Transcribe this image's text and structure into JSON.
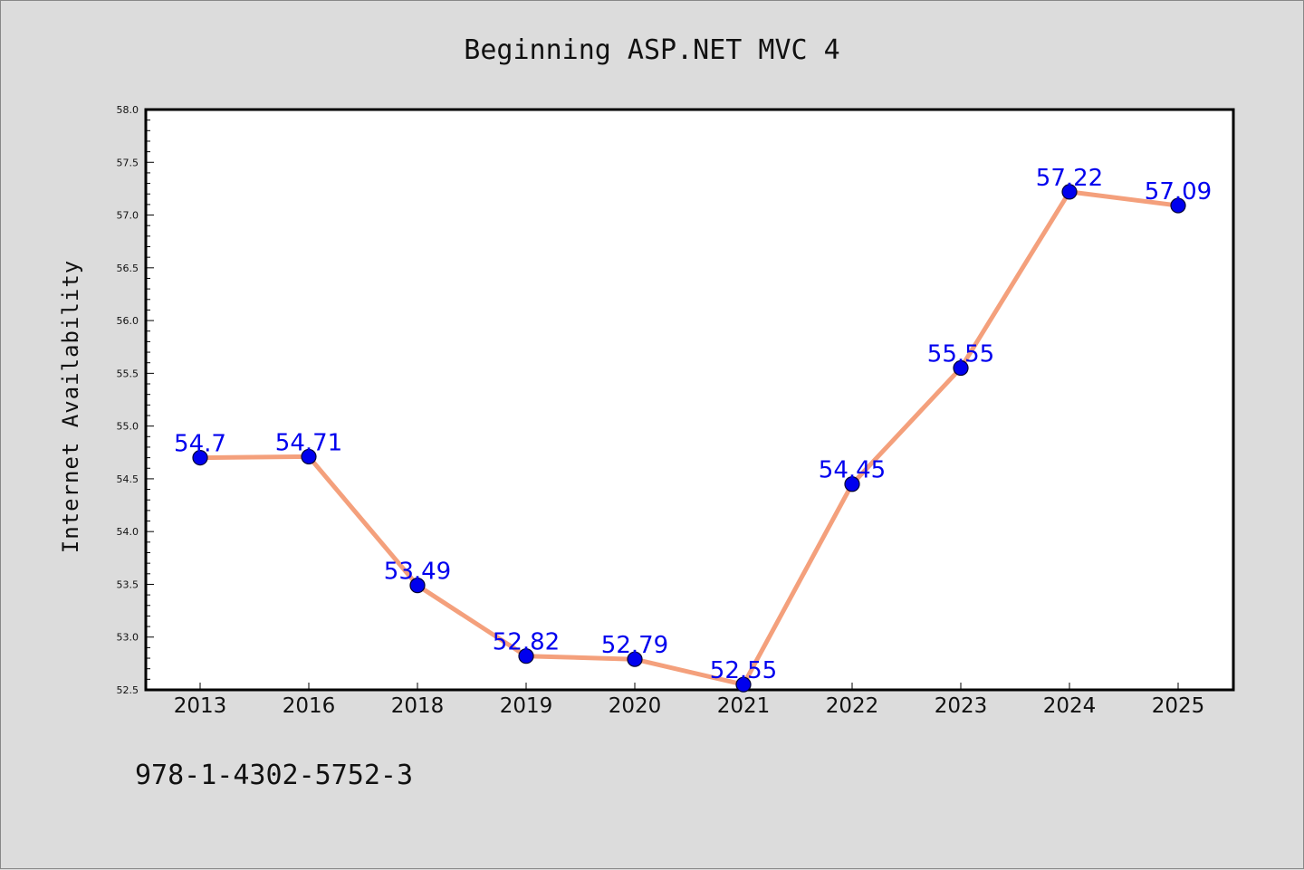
{
  "chart_data": {
    "type": "line",
    "title": "Beginning ASP.NET MVC 4",
    "xlabel": "",
    "ylabel": "Internet Availability",
    "categories": [
      "2013",
      "2016",
      "2018",
      "2019",
      "2020",
      "2021",
      "2022",
      "2023",
      "2024",
      "2025"
    ],
    "series": [
      {
        "values": [
          54.7,
          54.71,
          53.49,
          52.82,
          52.79,
          52.55,
          54.45,
          55.55,
          57.22,
          57.09
        ],
        "labels": [
          "54.7",
          "54.71",
          "53.49",
          "52.82",
          "52.79",
          "52.55",
          "54.45",
          "55.55",
          "57.22",
          "57.09"
        ]
      }
    ],
    "ylim": [
      52.5,
      58.0
    ],
    "yticks": [
      "52.5",
      "53.0",
      "53.5",
      "54.0",
      "54.5",
      "55.0",
      "55.5",
      "56.0",
      "56.5",
      "57.0",
      "57.5",
      "58.0"
    ],
    "grid": false,
    "legend": "none",
    "colors": {
      "line": "#f4a07c",
      "marker": "#0000ee",
      "marker_edge": "#000033",
      "data_label": "#0000ee",
      "plot_background": "#ffffff",
      "figure_background": "#dcdcdc"
    }
  },
  "footer_text": "978-1-4302-5752-3"
}
